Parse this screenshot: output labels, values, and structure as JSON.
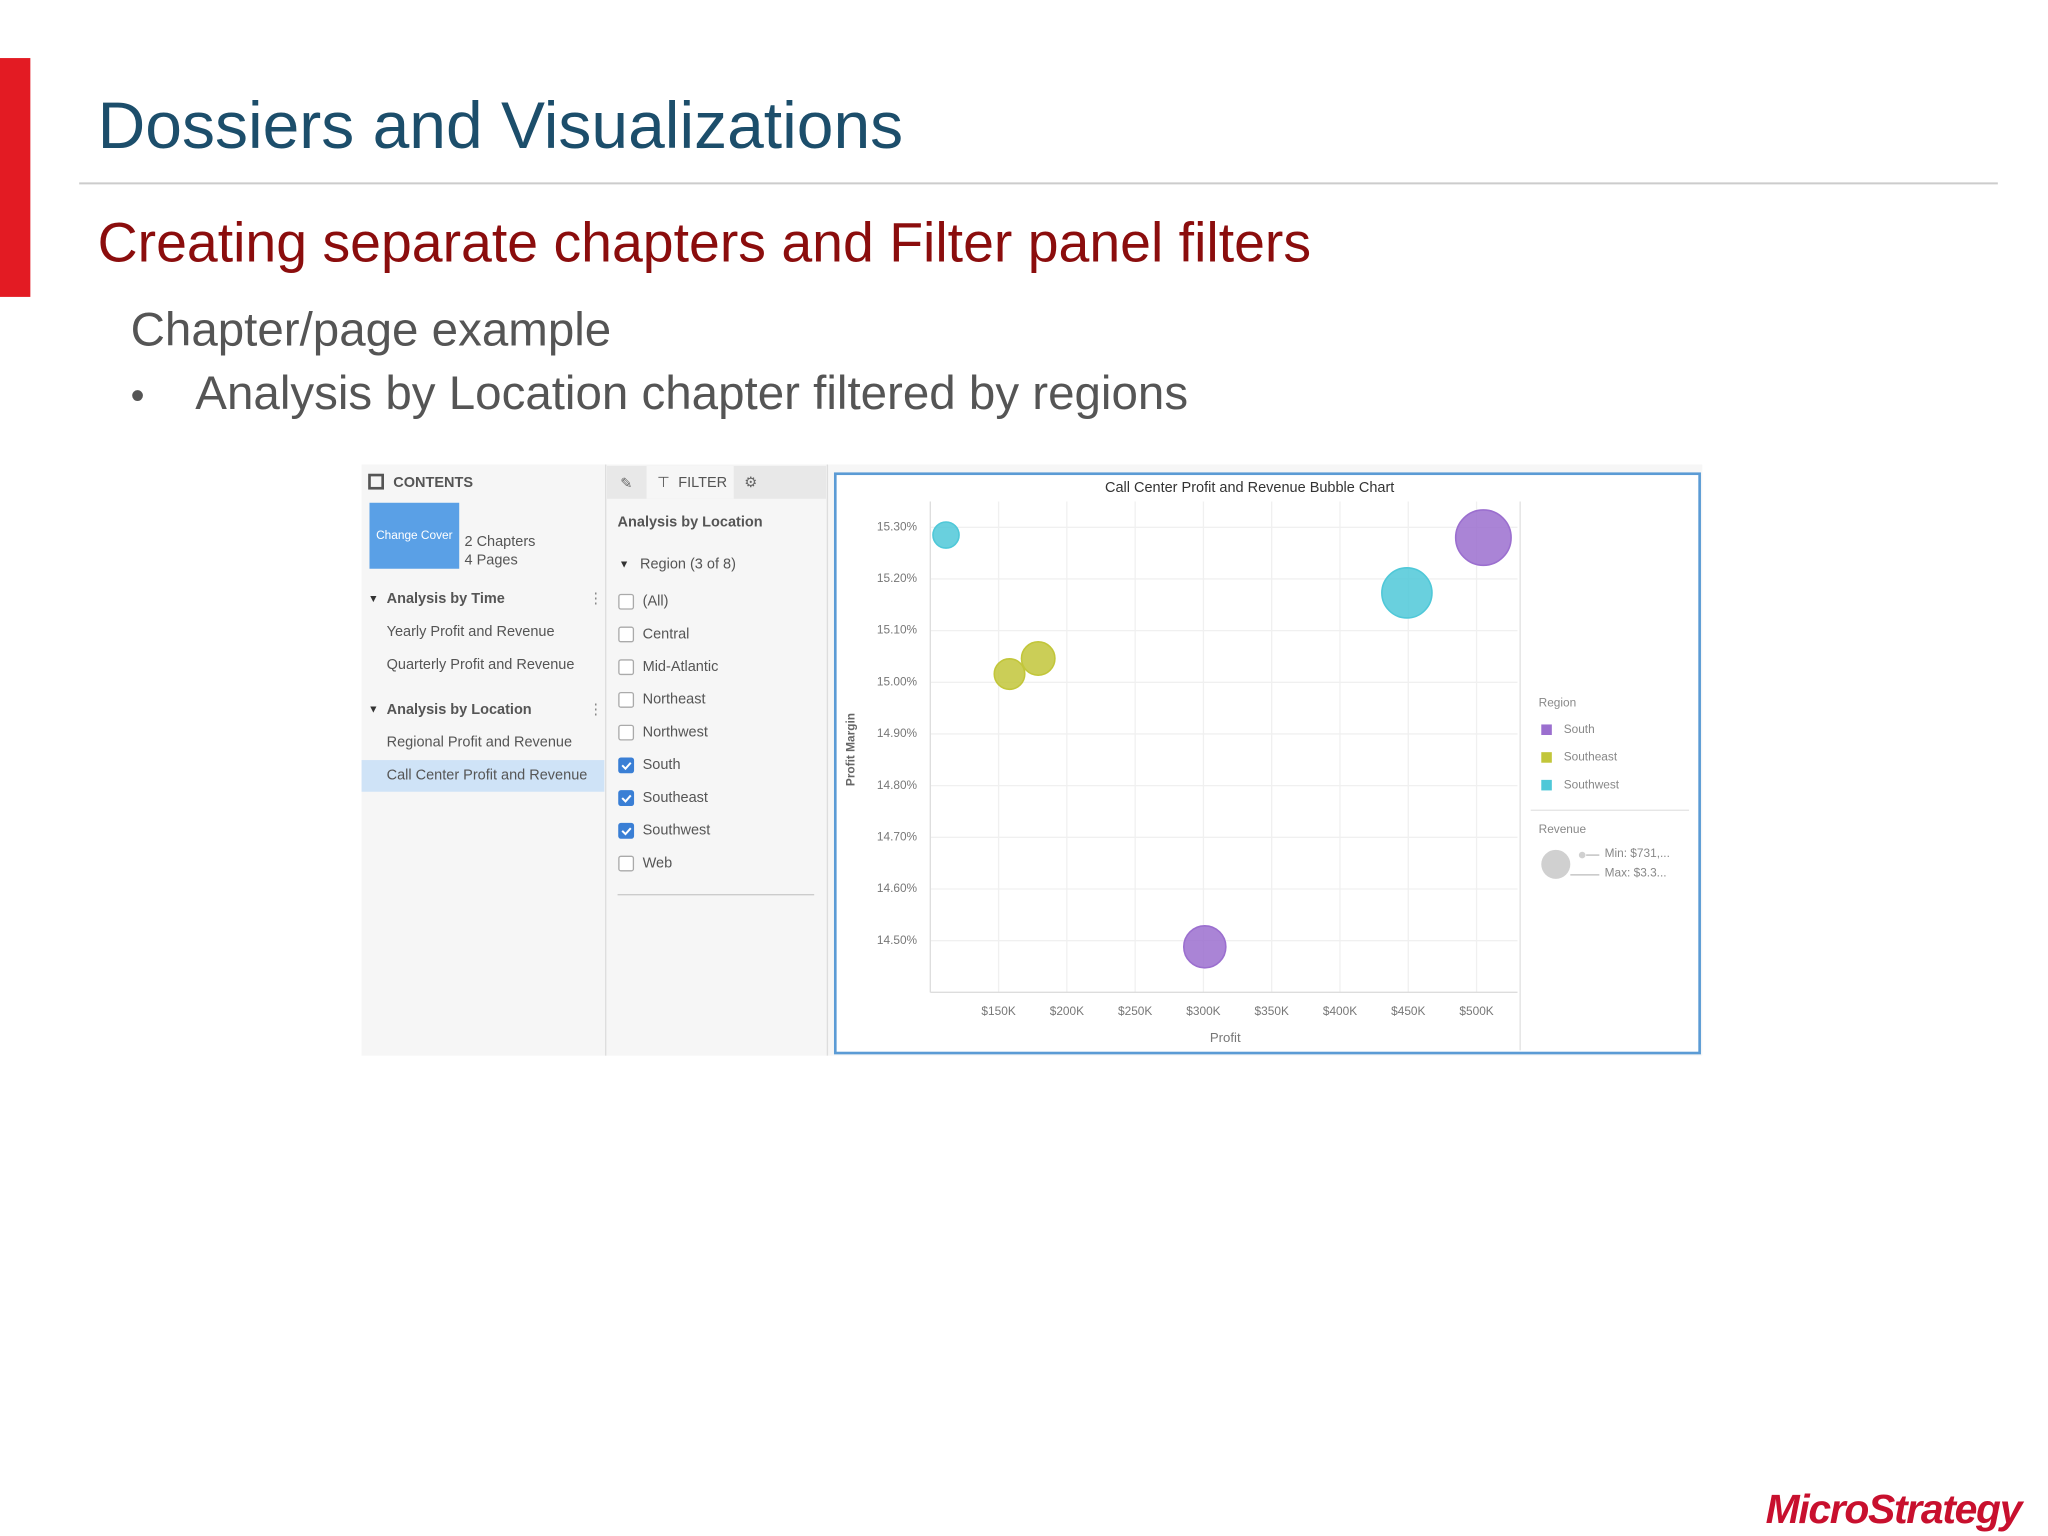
{
  "header": {
    "title": "Dossiers and Visualizations",
    "subtitle": "Creating separate chapters and Filter panel filters"
  },
  "body": {
    "heading": "Chapter/page example",
    "bullets": [
      "Analysis by Location chapter filtered by regions"
    ]
  },
  "contents_panel": {
    "header": "CONTENTS",
    "cover_label": "Change Cover",
    "cover_info": [
      "2 Chapters",
      "4 Pages"
    ],
    "chapters": [
      {
        "name": "Analysis by Time",
        "pages": [
          "Yearly Profit and Revenue",
          "Quarterly Profit and Revenue"
        ]
      },
      {
        "name": "Analysis by Location",
        "pages": [
          "Regional Profit and Revenue",
          "Call Center Profit and Revenue"
        ]
      }
    ],
    "selected": {
      "chapter": 1,
      "page": 1
    }
  },
  "filter_panel": {
    "tab": "FILTER",
    "chapter": "Analysis by Location",
    "filter": "Region (3 of 8)",
    "items": [
      {
        "label": "(All)",
        "checked": false
      },
      {
        "label": "Central",
        "checked": false
      },
      {
        "label": "Mid-Atlantic",
        "checked": false
      },
      {
        "label": "Northeast",
        "checked": false
      },
      {
        "label": "Northwest",
        "checked": false
      },
      {
        "label": "South",
        "checked": true
      },
      {
        "label": "Southeast",
        "checked": true
      },
      {
        "label": "Southwest",
        "checked": true
      },
      {
        "label": "Web",
        "checked": false
      }
    ]
  },
  "chart_data": {
    "type": "bubble",
    "title": "Call Center Profit and Revenue Bubble Chart",
    "x_label": "Profit",
    "y_label": "Profit Margin",
    "legend_title": "Region",
    "size_legend": {
      "title": "Revenue",
      "min_label": "Min: $731,...",
      "max_label": "Max: $3.3..."
    },
    "xlim": [
      100000,
      530000
    ],
    "ylim": [
      14.4,
      15.35
    ],
    "xticks": [
      {
        "value": 150000,
        "label": "$150K"
      },
      {
        "value": 200000,
        "label": "$200K"
      },
      {
        "value": 250000,
        "label": "$250K"
      },
      {
        "value": 300000,
        "label": "$300K"
      },
      {
        "value": 350000,
        "label": "$350K"
      },
      {
        "value": 400000,
        "label": "$400K"
      },
      {
        "value": 450000,
        "label": "$450K"
      },
      {
        "value": 500000,
        "label": "$500K"
      }
    ],
    "yticks": [
      {
        "value": 14.5,
        "label": "14.50%"
      },
      {
        "value": 14.6,
        "label": "14.60%"
      },
      {
        "value": 14.7,
        "label": "14.70%"
      },
      {
        "value": 14.8,
        "label": "14.80%"
      },
      {
        "value": 14.9,
        "label": "14.90%"
      },
      {
        "value": 15.0,
        "label": "15.00%"
      },
      {
        "value": 15.1,
        "label": "15.10%"
      },
      {
        "value": 15.2,
        "label": "15.20%"
      },
      {
        "value": 15.3,
        "label": "15.30%"
      }
    ],
    "grid": true,
    "series": [
      {
        "name": "South",
        "color": "#9b6fcf",
        "x": [
          505000,
          301000
        ],
        "y": [
          15.28,
          14.488
        ],
        "sizes": [
          3300000,
          1900000
        ]
      },
      {
        "name": "Southeast",
        "color": "#c2c63a",
        "x": [
          158000,
          179000
        ],
        "y": [
          15.016,
          15.046
        ],
        "sizes": [
          1000000,
          1200000
        ]
      },
      {
        "name": "Southwest",
        "color": "#4fc8d8",
        "x": [
          111500,
          449000
        ],
        "y": [
          15.285,
          15.173
        ],
        "sizes": [
          731000,
          2700000
        ]
      }
    ]
  },
  "logo": "MicroStrategy"
}
